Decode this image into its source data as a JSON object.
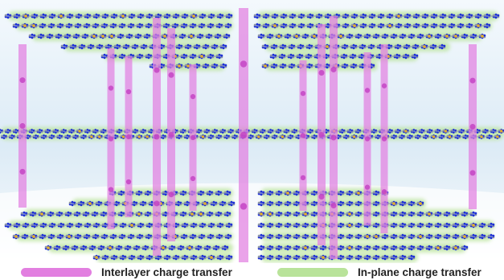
{
  "legend": {
    "interlayer": {
      "label": "Interlayer charge transfer",
      "color": "#e27fe0"
    },
    "inplane": {
      "label": "In-plane charge transfer",
      "color": "#b9e39a"
    }
  },
  "colors": {
    "background_top": "#e8f3fb",
    "background_bottom": "#ffffff",
    "atom_main": "#1e2fd6",
    "atom_light": "#8c95a8",
    "atom_accent": "#e0b030",
    "bond": "#3a4ab8",
    "interlayer_dot": "#c23fc2"
  },
  "icons": {
    "molecular_layer": "hexagonal-lattice-icon",
    "charge_pillar": "vertical-bar-icon"
  }
}
